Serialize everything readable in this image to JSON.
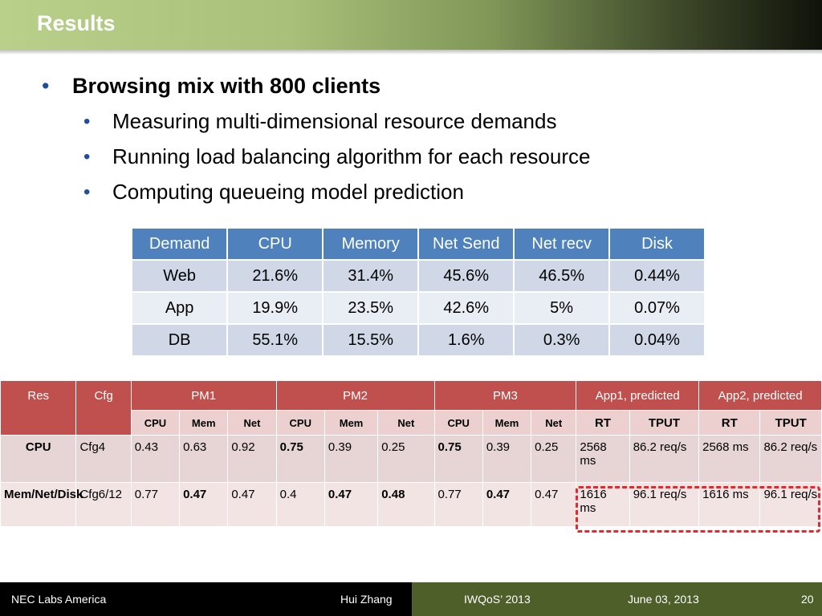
{
  "title": "Results",
  "bullets": {
    "main": "Browsing mix with 800 clients",
    "sub": [
      "Measuring multi-dimensional resource demands",
      "Running load balancing algorithm for each resource",
      "Computing queueing model prediction"
    ]
  },
  "demand_table": {
    "headers": [
      "Demand",
      "CPU",
      "Memory",
      "Net Send",
      "Net recv",
      "Disk"
    ],
    "rows": [
      [
        "Web",
        "21.6%",
        "31.4%",
        "45.6%",
        "46.5%",
        "0.44%"
      ],
      [
        "App",
        "19.9%",
        "23.5%",
        "42.6%",
        "5%",
        "0.07%"
      ],
      [
        "DB",
        "55.1%",
        "15.5%",
        "1.6%",
        "0.3%",
        "0.04%"
      ]
    ]
  },
  "results_table": {
    "h_res": "Res",
    "h_cfg": "Cfg",
    "groups": [
      "PM1",
      "PM2",
      "PM3",
      "App1, predicted",
      "App2, predicted"
    ],
    "sub": [
      "CPU",
      "Mem",
      "Net",
      "CPU",
      "Mem",
      "Net",
      "CPU",
      "Mem",
      "Net",
      "RT",
      "TPUT",
      "RT",
      "TPUT"
    ],
    "rows": [
      {
        "res": "CPU",
        "cfg": "Cfg4",
        "cells": [
          "0.43",
          "0.63",
          "0.92",
          "0.75",
          "0.39",
          "0.25",
          "0.75",
          "0.39",
          "0.25",
          "2568 ms",
          "86.2 req/s",
          "2568 ms",
          "86.2 req/s"
        ]
      },
      {
        "res": "Mem/Net/Disk",
        "cfg": "Cfg6/12",
        "cells": [
          "0.77",
          "0.47",
          "0.47",
          "0.4",
          "0.47",
          "0.48",
          "0.77",
          "0.47",
          "0.47",
          "1616 ms",
          "96.1 req/s",
          "1616 ms",
          "96.1 req/s"
        ]
      }
    ]
  },
  "footer": {
    "org": "NEC Labs America",
    "author": "Hui Zhang",
    "conf": "IWQoS’ 2013",
    "date": "June 03, 2013",
    "page": "20"
  }
}
